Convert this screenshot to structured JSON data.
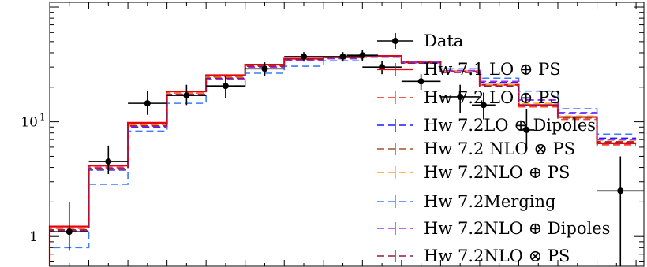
{
  "chart_data": {
    "type": "line",
    "title": "",
    "xlabel": "",
    "ylabel": "",
    "yscale": "log",
    "ylim": [
      0.55,
      110
    ],
    "xlim": [
      0,
      15.2
    ],
    "grid": false,
    "legend_position": "right",
    "y_tick_labels": [
      {
        "value": 1,
        "label": "1"
      },
      {
        "value": 10,
        "label": "10",
        "superscript": "1"
      }
    ],
    "bin_edges": [
      0,
      1,
      2,
      3,
      4,
      5,
      6,
      7,
      8,
      9,
      10,
      11,
      12,
      13,
      14,
      15
    ],
    "series": [
      {
        "name": "Hw 7.1 LO ⊕ PS",
        "color": "#e8000b",
        "dash": "solid",
        "width": 2.2,
        "values": [
          1.22,
          4.15,
          9.8,
          18.4,
          25.5,
          31.5,
          35.5,
          36.5,
          37.5,
          33,
          27.5,
          21,
          14,
          11,
          6.5
        ]
      },
      {
        "name": "Hw 7.2 LO ⊕ PS",
        "color": "#ff3b30",
        "dash": "dashed",
        "width": 1.8,
        "values": [
          1.18,
          4.0,
          9.5,
          17.8,
          24.8,
          30.8,
          35,
          36,
          37,
          32.5,
          27,
          20.5,
          13.5,
          10.5,
          6.3
        ]
      },
      {
        "name": "Hw 7.2LO ⊕ Dipoles",
        "color": "#1a1aff",
        "dash": "dashed",
        "width": 1.6,
        "values": [
          1.1,
          3.8,
          9.0,
          17.0,
          24.0,
          30.5,
          34.5,
          35.5,
          36.5,
          32.5,
          27.5,
          22,
          15.5,
          12,
          7.2
        ]
      },
      {
        "name": "Hw 7.2 NLO ⊗ PS",
        "color": "#a0522d",
        "dash": "dashed",
        "width": 1.6,
        "values": [
          1.12,
          3.85,
          9.2,
          17.2,
          24.5,
          31.0,
          35,
          36,
          37,
          32.5,
          27,
          20.5,
          14,
          10.8,
          6.6
        ]
      },
      {
        "name": "Hw 7.2NLO ⊕ PS",
        "color": "#ff9f1c",
        "dash": "dashed",
        "width": 1.6,
        "values": [
          1.15,
          3.9,
          9.3,
          17.5,
          24.3,
          30.5,
          34.8,
          35.8,
          36.8,
          32.8,
          27.5,
          21,
          14.5,
          11.2,
          6.9
        ]
      },
      {
        "name": "Hw 7.2Merging",
        "color": "#3a7bff",
        "dash": "dashed",
        "width": 1.6,
        "values": [
          0.8,
          2.85,
          8.3,
          14.5,
          20.5,
          26.5,
          30.5,
          34,
          36.5,
          33,
          29,
          24,
          18.5,
          13,
          7.8
        ]
      },
      {
        "name": "Hw 7.2NLO ⊕ Dipoles",
        "color": "#9b30ff",
        "dash": "dashed",
        "width": 1.6,
        "values": [
          1.13,
          3.95,
          9.1,
          17.0,
          23.5,
          30.0,
          34.5,
          35.5,
          36.5,
          33,
          28,
          22.5,
          15.5,
          11.8,
          7.0
        ]
      },
      {
        "name": "Hw 7.2NLO ⊗ PS",
        "color": "#8b1a4a",
        "dash": "dashed",
        "width": 1.6,
        "values": [
          1.14,
          3.9,
          9.2,
          17.3,
          24.0,
          30.5,
          35,
          36,
          37,
          32.5,
          27,
          20.5,
          14,
          11,
          6.7
        ]
      }
    ],
    "data_series": {
      "name": "Data",
      "color": "#000000",
      "points": [
        {
          "x": 0.5,
          "y": 1.1,
          "ylo": 0.75,
          "yhi": 2.0,
          "xlo": 0.0,
          "xhi": 1.0
        },
        {
          "x": 1.5,
          "y": 4.5,
          "ylo": 3.5,
          "yhi": 6.2,
          "xlo": 1.0,
          "xhi": 2.0
        },
        {
          "x": 2.5,
          "y": 14.5,
          "ylo": 11.5,
          "yhi": 18.5,
          "xlo": 2.0,
          "xhi": 3.0
        },
        {
          "x": 3.5,
          "y": 17.0,
          "ylo": 14.0,
          "yhi": 21.0,
          "xlo": 3.0,
          "xhi": 4.0
        },
        {
          "x": 4.5,
          "y": 20.5,
          "ylo": 16.0,
          "yhi": 25.0,
          "xlo": 4.0,
          "xhi": 5.0
        },
        {
          "x": 5.5,
          "y": 29.0,
          "ylo": 25.0,
          "yhi": 33.0,
          "xlo": 5.0,
          "xhi": 6.0
        },
        {
          "x": 6.5,
          "y": 37.0,
          "ylo": 33.5,
          "yhi": 40.5,
          "xlo": 6.0,
          "xhi": 7.0
        },
        {
          "x": 7.5,
          "y": 37.0,
          "ylo": 33.5,
          "yhi": 40.5,
          "xlo": 7.0,
          "xhi": 8.0
        },
        {
          "x": 8.0,
          "y": 38.0,
          "ylo": 34.0,
          "yhi": 42.0,
          "xlo": 7.6,
          "xhi": 8.4
        },
        {
          "x": 8.5,
          "y": 30.0,
          "ylo": 26.0,
          "yhi": 34.0,
          "xlo": 8.0,
          "xhi": 9.0
        },
        {
          "x": 9.5,
          "y": 22.5,
          "ylo": 19.0,
          "yhi": 26.0,
          "xlo": 9.0,
          "xhi": 10.0
        },
        {
          "x": 10.5,
          "y": 16.5,
          "ylo": 12.0,
          "yhi": 21.0,
          "xlo": 10.0,
          "xhi": 11.0
        },
        {
          "x": 11.1,
          "y": 14.0,
          "ylo": 10.5,
          "yhi": 18.0,
          "xlo": 10.8,
          "xhi": 11.4
        },
        {
          "x": 12.2,
          "y": 8.5,
          "ylo": 6.0,
          "yhi": 13.0,
          "xlo": 12.0,
          "xhi": 12.4
        },
        {
          "x": 14.6,
          "y": 2.5,
          "ylo": 0.55,
          "yhi": 5.0,
          "xlo": 14.0,
          "xhi": 15.2
        }
      ]
    }
  }
}
